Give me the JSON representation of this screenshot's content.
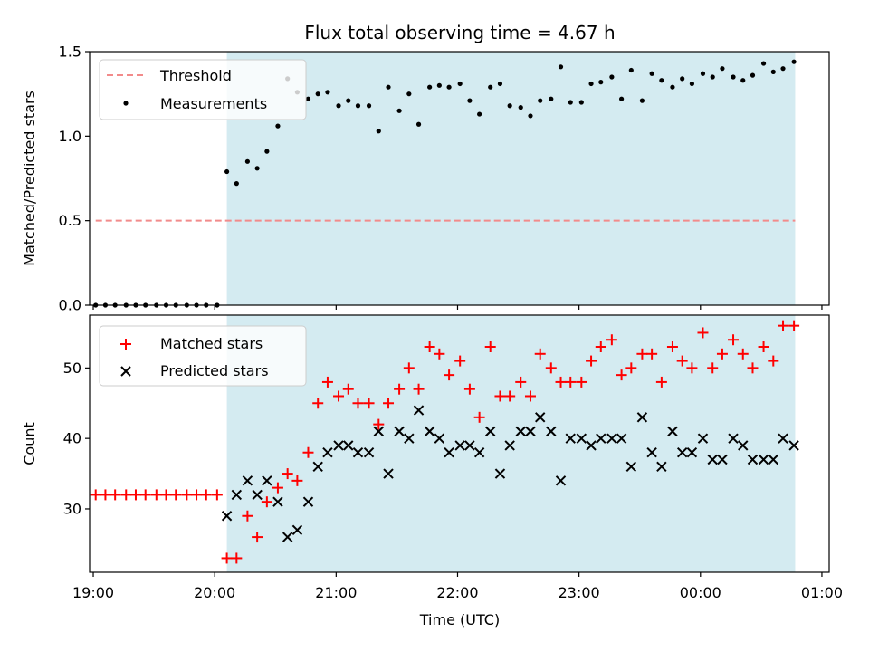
{
  "chart_data": {
    "title": "Flux total observing time = 4.67 h",
    "xlabel": "Time (UTC)",
    "x_tick_labels": [
      "19:00",
      "20:00",
      "21:00",
      "22:00",
      "23:00",
      "00:00",
      "01:00"
    ],
    "x_tick_hours": [
      19,
      20,
      21,
      22,
      23,
      24,
      25
    ],
    "xlim": [
      18.97,
      25.06
    ],
    "shaded_region": {
      "x": [
        20.1,
        24.78
      ],
      "color": "#d4ebf1"
    },
    "top": {
      "type": "scatter",
      "ylabel": "Matched/Predicted stars",
      "ylim": [
        0,
        1.5
      ],
      "y_ticks": [
        0.0,
        0.5,
        1.0,
        1.5
      ],
      "y_tick_labels": [
        "0.0",
        "0.5",
        "1.0",
        "1.5"
      ],
      "legend": {
        "position": "top-left",
        "entries": [
          "Threshold",
          "Measurements"
        ]
      },
      "threshold": {
        "name": "Threshold",
        "value": 0.5,
        "x": [
          19.02,
          24.78
        ],
        "color": "#f28b8b"
      },
      "series": {
        "name": "Measurements",
        "color": "#000000",
        "x": [
          19.02,
          19.1,
          19.18,
          19.27,
          19.35,
          19.43,
          19.52,
          19.6,
          19.68,
          19.77,
          19.85,
          19.93,
          20.02,
          20.1,
          20.18,
          20.27,
          20.35,
          20.43,
          20.52,
          20.6,
          20.68,
          20.77,
          20.85,
          20.93,
          21.02,
          21.1,
          21.18,
          21.27,
          21.35,
          21.43,
          21.52,
          21.6,
          21.68,
          21.77,
          21.85,
          21.93,
          22.02,
          22.1,
          22.18,
          22.27,
          22.35,
          22.43,
          22.52,
          22.6,
          22.68,
          22.77,
          22.85,
          22.93,
          23.02,
          23.1,
          23.18,
          23.27,
          23.35,
          23.43,
          23.52,
          23.6,
          23.68,
          23.77,
          23.85,
          23.93,
          24.02,
          24.1,
          24.18,
          24.27,
          24.35,
          24.43,
          24.52,
          24.6,
          24.68,
          24.77
        ],
        "y": [
          0,
          0,
          0,
          0,
          0,
          0,
          0,
          0,
          0,
          0,
          0,
          0,
          0,
          0.79,
          0.72,
          0.85,
          0.81,
          0.91,
          1.06,
          1.34,
          1.26,
          1.22,
          1.25,
          1.26,
          1.18,
          1.21,
          1.18,
          1.18,
          1.03,
          1.29,
          1.15,
          1.25,
          1.07,
          1.29,
          1.3,
          1.29,
          1.31,
          1.21,
          1.13,
          1.29,
          1.31,
          1.18,
          1.17,
          1.12,
          1.21,
          1.22,
          1.41,
          1.2,
          1.2,
          1.31,
          1.32,
          1.35,
          1.22,
          1.39,
          1.21,
          1.37,
          1.33,
          1.29,
          1.34,
          1.31,
          1.37,
          1.35,
          1.4,
          1.35,
          1.33,
          1.36,
          1.43,
          1.38,
          1.4,
          1.44
        ]
      }
    },
    "bottom": {
      "type": "scatter",
      "ylabel": "Count",
      "ylim": [
        21,
        57.5
      ],
      "y_ticks": [
        30,
        40,
        50
      ],
      "y_tick_labels": [
        "30",
        "40",
        "50"
      ],
      "legend": {
        "position": "top-left",
        "entries": [
          "Matched stars",
          "Predicted stars"
        ]
      },
      "series": [
        {
          "name": "Matched stars",
          "marker": "plus",
          "color": "#ff0000",
          "x": [
            19.02,
            19.1,
            19.18,
            19.27,
            19.35,
            19.43,
            19.52,
            19.6,
            19.68,
            19.77,
            19.85,
            19.93,
            20.02,
            20.1,
            20.18,
            20.27,
            20.35,
            20.43,
            20.52,
            20.6,
            20.68,
            20.77,
            20.85,
            20.93,
            21.02,
            21.1,
            21.18,
            21.27,
            21.35,
            21.43,
            21.52,
            21.6,
            21.68,
            21.77,
            21.85,
            21.93,
            22.02,
            22.1,
            22.18,
            22.27,
            22.35,
            22.43,
            22.52,
            22.6,
            22.68,
            22.77,
            22.85,
            22.93,
            23.02,
            23.1,
            23.18,
            23.27,
            23.35,
            23.43,
            23.52,
            23.6,
            23.68,
            23.77,
            23.85,
            23.93,
            24.02,
            24.1,
            24.18,
            24.27,
            24.35,
            24.43,
            24.52,
            24.6,
            24.68,
            24.77
          ],
          "y": [
            32,
            32,
            32,
            32,
            32,
            32,
            32,
            32,
            32,
            32,
            32,
            32,
            32,
            23,
            23,
            29,
            26,
            31,
            33,
            35,
            34,
            38,
            45,
            48,
            46,
            47,
            45,
            45,
            42,
            45,
            47,
            50,
            47,
            53,
            52,
            49,
            51,
            47,
            43,
            53,
            46,
            46,
            48,
            46,
            52,
            50,
            48,
            48,
            48,
            51,
            53,
            54,
            49,
            50,
            52,
            52,
            48,
            53,
            51,
            50,
            55,
            50,
            52,
            54,
            52,
            50,
            53,
            51,
            56,
            56
          ]
        },
        {
          "name": "Predicted stars",
          "marker": "x",
          "color": "#000000",
          "x": [
            20.1,
            20.18,
            20.27,
            20.35,
            20.43,
            20.52,
            20.6,
            20.68,
            20.77,
            20.85,
            20.93,
            21.02,
            21.1,
            21.18,
            21.27,
            21.35,
            21.43,
            21.52,
            21.6,
            21.68,
            21.77,
            21.85,
            21.93,
            22.02,
            22.1,
            22.18,
            22.27,
            22.35,
            22.43,
            22.52,
            22.6,
            22.68,
            22.77,
            22.85,
            22.93,
            23.02,
            23.1,
            23.18,
            23.27,
            23.35,
            23.43,
            23.52,
            23.6,
            23.68,
            23.77,
            23.85,
            23.93,
            24.02,
            24.1,
            24.18,
            24.27,
            24.35,
            24.43,
            24.52,
            24.6,
            24.68,
            24.77
          ],
          "y": [
            29,
            32,
            34,
            32,
            34,
            31,
            26,
            27,
            31,
            36,
            38,
            39,
            39,
            38,
            38,
            41,
            35,
            41,
            40,
            44,
            41,
            40,
            38,
            39,
            39,
            38,
            41,
            35,
            39,
            41,
            41,
            43,
            41,
            34,
            40,
            40,
            39,
            40,
            40,
            40,
            36,
            43,
            38,
            36,
            41,
            38,
            38,
            40,
            37,
            37,
            40,
            39,
            37,
            37,
            37,
            40,
            39
          ]
        }
      ]
    }
  }
}
